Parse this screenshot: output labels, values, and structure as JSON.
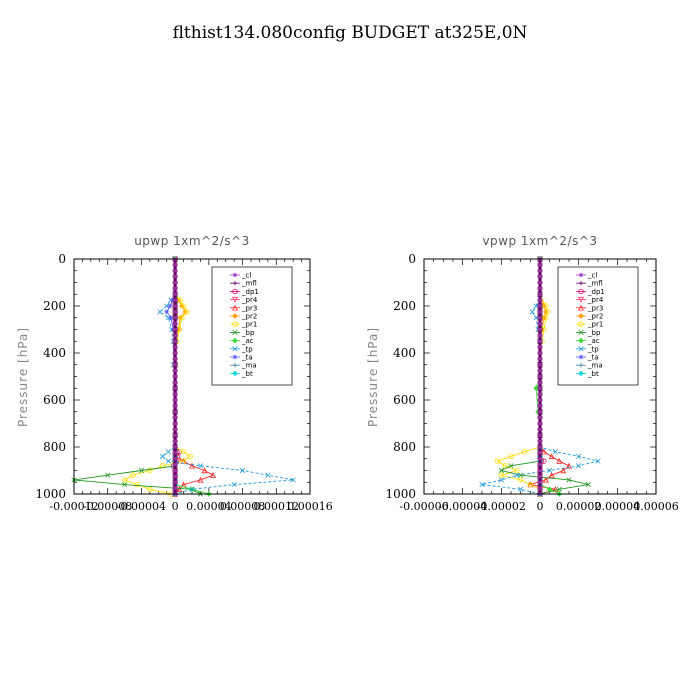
{
  "title": "flthist134.080config  BUDGET at325E,0N",
  "chart_data": [
    {
      "type": "line",
      "title": "upwp   1xm^2/s^3",
      "ylabel": "Pressure  [hPa]",
      "xlabel": "",
      "ylim": [
        1000,
        0
      ],
      "xlim": [
        -0.00012,
        0.00016
      ],
      "yticks": [
        "0",
        "200",
        "400",
        "600",
        "800",
        "1000"
      ],
      "xticks": [
        "-0.00012",
        "-0.00008",
        "-0.00004",
        "0",
        "0.00004",
        "0.00008",
        "0.00012",
        "0.00016"
      ],
      "legend": [
        "_cl",
        "_mfl",
        "_dp1",
        "_pr4",
        "_pr3",
        "_pr2",
        "_pr1",
        "_bp",
        "_ac",
        "_tp",
        "_ta",
        "_ma",
        "_bt"
      ],
      "legend_position": "top-right",
      "y": [
        0,
        150,
        175,
        200,
        225,
        250,
        300,
        350,
        450,
        550,
        650,
        750,
        800,
        820,
        840,
        860,
        880,
        900,
        920,
        940,
        960,
        980,
        1000
      ],
      "series": [
        {
          "name": "_cl",
          "color": "#9933cc",
          "values": [
            0,
            0,
            0,
            0,
            0,
            0,
            0,
            0,
            0,
            0,
            0,
            0,
            0,
            0,
            0,
            0,
            0,
            0,
            0,
            0,
            0,
            0,
            0
          ]
        },
        {
          "name": "_mfl",
          "color": "#660066",
          "values": [
            0,
            0,
            0,
            0,
            0,
            0,
            0,
            0,
            0,
            0,
            0,
            0,
            0,
            0,
            0,
            0,
            0,
            0,
            0,
            0,
            0,
            0,
            0
          ]
        },
        {
          "name": "_dp1",
          "color": "#cc0066",
          "values": [
            0,
            0,
            0,
            0,
            0,
            0,
            0,
            0,
            0,
            0,
            0,
            0,
            0,
            5e-06,
            3e-06,
            0,
            -2e-06,
            0,
            0,
            0,
            0,
            0,
            0
          ]
        },
        {
          "name": "_pr4",
          "color": "#ff3366",
          "values": [
            0,
            0,
            0,
            0,
            0,
            0,
            0,
            0,
            0,
            0,
            0,
            0,
            0,
            0,
            0,
            4e-06,
            0,
            0,
            0,
            0,
            0,
            0,
            0
          ]
        },
        {
          "name": "_pr3",
          "color": "#ff2222",
          "values": [
            0,
            0,
            0,
            0,
            0,
            0,
            0,
            0,
            0,
            0,
            0,
            0,
            0,
            0,
            0,
            1e-05,
            2e-05,
            3.5e-05,
            4.5e-05,
            3e-05,
            1e-05,
            5e-06,
            0
          ]
        },
        {
          "name": "_pr2",
          "color": "#ff9900",
          "values": [
            0,
            0,
            4e-06,
            8e-06,
            1.2e-05,
            6e-06,
            4e-06,
            0,
            0,
            0,
            0,
            0,
            0,
            0,
            0,
            0,
            0,
            0,
            0,
            0,
            0,
            0,
            0
          ]
        },
        {
          "name": "_pr1",
          "color": "#ffdd00",
          "values": [
            0,
            0,
            6e-06,
            1e-05,
            1.4e-05,
            8e-06,
            5e-06,
            2e-06,
            0,
            0,
            0,
            0,
            0,
            1e-05,
            1.8e-05,
            1e-05,
            -1.5e-05,
            -3e-05,
            -5e-05,
            -6e-05,
            -4.5e-05,
            -3e-05,
            -5e-06
          ]
        },
        {
          "name": "_bp",
          "color": "#229922",
          "values": [
            0,
            0,
            0,
            0,
            0,
            0,
            0,
            0,
            0,
            0,
            0,
            0,
            0,
            0,
            0,
            0,
            0,
            -4e-05,
            -8e-05,
            -0.00012,
            -6e-05,
            2e-05,
            3e-05
          ]
        },
        {
          "name": "_ac",
          "color": "#33dd33",
          "values": [
            0,
            0,
            0,
            0,
            0,
            0,
            0,
            0,
            0,
            0,
            0,
            0,
            0,
            0,
            0,
            0,
            0,
            0,
            0,
            0,
            0,
            2e-05,
            4e-05
          ]
        },
        {
          "name": "_tp",
          "color": "#2299dd",
          "values": [
            0,
            0,
            -5e-06,
            -1e-05,
            -1.8e-05,
            -8e-06,
            -4e-06,
            -2e-06,
            -2e-06,
            0,
            0,
            0,
            0,
            -8e-06,
            -1.5e-05,
            -8e-06,
            3e-05,
            8e-05,
            0.00011,
            0.00014,
            7e-05,
            2e-05,
            0
          ]
        },
        {
          "name": "_ta",
          "color": "#5555ff",
          "values": [
            0,
            0,
            -3e-06,
            -6e-06,
            -1e-05,
            -5e-06,
            -2e-06,
            0,
            0,
            0,
            0,
            0,
            0,
            0,
            0,
            0,
            0,
            0,
            0,
            0,
            0,
            0,
            0
          ]
        },
        {
          "name": "_ma",
          "color": "#4488aa",
          "values": [
            0,
            0,
            0,
            0,
            0,
            0,
            0,
            0,
            0,
            0,
            0,
            0,
            0,
            0,
            0,
            0,
            0,
            0,
            0,
            0,
            0,
            0,
            0
          ]
        },
        {
          "name": "_bt",
          "color": "#00dddd",
          "values": [
            0,
            0,
            0,
            0,
            0,
            0,
            0,
            0,
            0,
            0,
            0,
            0,
            0,
            0,
            0,
            0,
            0,
            0,
            0,
            0,
            0,
            0,
            0
          ]
        }
      ]
    },
    {
      "type": "line",
      "title": "vpwp   1xm^2/s^3",
      "ylabel": "Pressure  [hPa]",
      "xlabel": "",
      "ylim": [
        1000,
        0
      ],
      "xlim": [
        -6e-05,
        6e-05
      ],
      "yticks": [
        "0",
        "200",
        "400",
        "600",
        "800",
        "1000"
      ],
      "xticks": [
        "-0.00006",
        "-0.00004",
        "-0.00002",
        "0",
        "0.00002",
        "0.00004",
        "0.00006"
      ],
      "legend": [
        "_cl",
        "_mfl",
        "_dp1",
        "_pr4",
        "_pr3",
        "_pr2",
        "_pr1",
        "_bp",
        "_ac",
        "_tp",
        "_ta",
        "_ma",
        "_bt"
      ],
      "legend_position": "top-right",
      "y": [
        0,
        150,
        200,
        225,
        250,
        300,
        350,
        450,
        500,
        550,
        650,
        750,
        800,
        820,
        840,
        860,
        880,
        900,
        920,
        940,
        960,
        980,
        1000
      ],
      "series": [
        {
          "name": "_cl",
          "color": "#9933cc",
          "values": [
            0,
            0,
            0,
            0,
            0,
            0,
            0,
            0,
            0,
            0,
            0,
            0,
            0,
            0,
            0,
            0,
            0,
            0,
            0,
            0,
            0,
            0,
            0
          ]
        },
        {
          "name": "_mfl",
          "color": "#660066",
          "values": [
            0,
            0,
            0,
            0,
            0,
            0,
            0,
            0,
            0,
            0,
            0,
            0,
            0,
            0,
            0,
            0,
            0,
            0,
            0,
            0,
            0,
            0,
            0
          ]
        },
        {
          "name": "_dp1",
          "color": "#cc0066",
          "values": [
            0,
            0,
            0,
            0,
            0,
            0,
            0,
            0,
            0,
            0,
            0,
            0,
            0,
            0,
            0,
            2e-06,
            0,
            0,
            0,
            0,
            0,
            0,
            0
          ]
        },
        {
          "name": "_pr4",
          "color": "#ff3366",
          "values": [
            0,
            0,
            0,
            0,
            0,
            0,
            0,
            0,
            0,
            0,
            0,
            0,
            0,
            0,
            0,
            0,
            0,
            0,
            0,
            0,
            0,
            0,
            0
          ]
        },
        {
          "name": "_pr3",
          "color": "#ff2222",
          "values": [
            0,
            0,
            0,
            0,
            0,
            0,
            0,
            0,
            0,
            0,
            0,
            0,
            0,
            2e-06,
            6e-06,
            1e-05,
            1.5e-05,
            1.2e-05,
            6e-06,
            3e-06,
            -5e-06,
            8e-06,
            0
          ]
        },
        {
          "name": "_pr2",
          "color": "#ff9900",
          "values": [
            0,
            0,
            2e-06,
            3e-06,
            2e-06,
            1e-06,
            0,
            0,
            0,
            0,
            0,
            0,
            0,
            0,
            0,
            0,
            0,
            0,
            0,
            0,
            0,
            0,
            0
          ]
        },
        {
          "name": "_pr1",
          "color": "#ffdd00",
          "values": [
            0,
            0,
            3e-06,
            4e-06,
            3e-06,
            2e-06,
            1e-06,
            0,
            0,
            0,
            0,
            0,
            0,
            -8e-06,
            -1.5e-05,
            -2.2e-05,
            -1.8e-05,
            -1.2e-05,
            -2e-05,
            -1e-05,
            -5e-06,
            0,
            0
          ]
        },
        {
          "name": "_bp",
          "color": "#229922",
          "values": [
            0,
            0,
            0,
            0,
            0,
            0,
            0,
            0,
            0,
            0,
            0,
            0,
            0,
            0,
            0,
            0,
            -1.5e-05,
            -2e-05,
            -1e-05,
            1.5e-05,
            2.5e-05,
            1e-05,
            0
          ]
        },
        {
          "name": "_ac",
          "color": "#33dd33",
          "values": [
            0,
            0,
            0,
            0,
            0,
            0,
            0,
            0,
            0,
            -2e-06,
            -1e-06,
            0,
            0,
            0,
            0,
            0,
            0,
            0,
            0,
            0,
            0,
            5e-06,
            1e-05
          ]
        },
        {
          "name": "_tp",
          "color": "#2299dd",
          "values": [
            0,
            0,
            -2e-06,
            -4e-06,
            -2e-06,
            -1e-06,
            0,
            0,
            0,
            0,
            0,
            0,
            0,
            8e-06,
            2e-05,
            3e-05,
            2e-05,
            5e-06,
            -1.2e-05,
            -2e-05,
            -3e-05,
            -1e-05,
            0
          ]
        },
        {
          "name": "_ta",
          "color": "#5555ff",
          "values": [
            0,
            0,
            0,
            0,
            0,
            0,
            0,
            0,
            0,
            0,
            0,
            0,
            0,
            0,
            0,
            0,
            0,
            0,
            0,
            0,
            0,
            0,
            0
          ]
        },
        {
          "name": "_ma",
          "color": "#4488aa",
          "values": [
            0,
            0,
            0,
            0,
            0,
            0,
            0,
            0,
            0,
            0,
            0,
            0,
            0,
            0,
            0,
            0,
            0,
            0,
            0,
            0,
            0,
            0,
            0
          ]
        },
        {
          "name": "_bt",
          "color": "#00dddd",
          "values": [
            0,
            0,
            0,
            0,
            0,
            0,
            0,
            0,
            0,
            0,
            0,
            0,
            0,
            0,
            0,
            0,
            0,
            0,
            0,
            0,
            0,
            0,
            0
          ]
        }
      ]
    }
  ]
}
